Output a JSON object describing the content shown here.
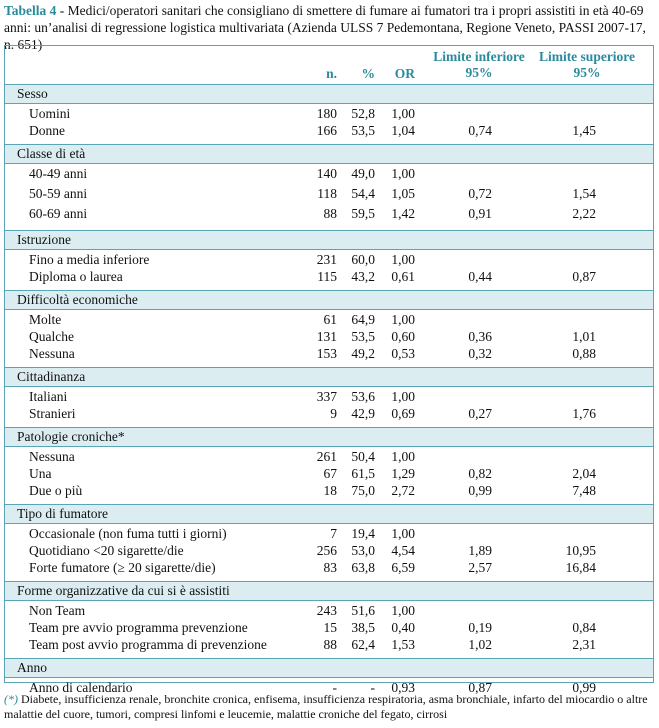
{
  "title": {
    "label": "Tabella 4",
    "text": "- Medici/operatori sanitari che consigliano di smettere di fumare ai fumatori tra i propri assistiti in età 40-69 anni: un’analisi di regressione logistica multivariata (Azienda ULSS 7 Pedemontana, Regione Veneto, PASSI 2007-17, n. 651)"
  },
  "table": {
    "headers": {
      "n": "n.",
      "pct": "%",
      "or": "OR",
      "lo": {
        "line1": "Limite inferiore",
        "line2": "95%"
      },
      "hi": {
        "line1": "Limite superiore",
        "line2": "95%"
      }
    },
    "groups": [
      {
        "name": "Sesso",
        "rows": [
          {
            "label": "Uomini",
            "n": "180",
            "pct": "52,8",
            "or": "1,00"
          },
          {
            "label": "Donne",
            "n": "166",
            "pct": "53,5",
            "or": "1,04",
            "lo": "0,74",
            "hi": "1,45"
          }
        ]
      },
      {
        "name": "Classe di età",
        "rows": [
          {
            "label": "40-49 anni",
            "n": "140",
            "pct": "49,0",
            "or": "1,00"
          },
          {
            "label": "50-59 anni",
            "n": "118",
            "pct": "54,4",
            "or": "1,05",
            "lo": "0,72",
            "hi": "1,54"
          },
          {
            "label": "60-69 anni",
            "n": "88",
            "pct": "59,5",
            "or": "1,42",
            "lo": "0,91",
            "hi": "2,22"
          }
        ]
      },
      {
        "name": "Istruzione",
        "rows": [
          {
            "label": "Fino a media inferiore",
            "n": "231",
            "pct": "60,0",
            "or": "1,00"
          },
          {
            "label": "Diploma o laurea",
            "n": "115",
            "pct": "43,2",
            "or": "0,61",
            "lo": "0,44",
            "hi": "0,87"
          }
        ]
      },
      {
        "name": "Difficoltà economiche",
        "rows": [
          {
            "label": "Molte",
            "n": "61",
            "pct": "64,9",
            "or": "1,00"
          },
          {
            "label": "Qualche",
            "n": "131",
            "pct": "53,5",
            "or": "0,60",
            "lo": "0,36",
            "hi": "1,01"
          },
          {
            "label": "Nessuna",
            "n": "153",
            "pct": "49,2",
            "or": "0,53",
            "lo": "0,32",
            "hi": "0,88"
          }
        ]
      },
      {
        "name": "Cittadinanza",
        "rows": [
          {
            "label": "Italiani",
            "n": "337",
            "pct": "53,6",
            "or": "1,00"
          },
          {
            "label": "Stranieri",
            "n": "9",
            "pct": "42,9",
            "or": "0,69",
            "lo": "0,27",
            "hi": "1,76"
          }
        ]
      },
      {
        "name": "Patologie croniche*",
        "rows": [
          {
            "label": "Nessuna",
            "n": "261",
            "pct": "50,4",
            "or": "1,00"
          },
          {
            "label": "Una",
            "n": "67",
            "pct": "61,5",
            "or": "1,29",
            "lo": "0,82",
            "hi": "2,04"
          },
          {
            "label": "Due o più",
            "n": "18",
            "pct": "75,0",
            "or": "2,72",
            "lo": "0,99",
            "hi": "7,48"
          }
        ]
      },
      {
        "name": "Tipo di fumatore",
        "rows": [
          {
            "label": "Occasionale (non fuma tutti i giorni)",
            "n": "7",
            "pct": "19,4",
            "or": "1,00"
          },
          {
            "label": "Quotidiano <20 sigarette/die",
            "n": "256",
            "pct": "53,0",
            "or": "4,54",
            "lo": "1,89",
            "hi": "10,95"
          },
          {
            "label": "Forte fumatore (≥ 20 sigarette/die)",
            "n": "83",
            "pct": "63,8",
            "or": "6,59",
            "lo": "2,57",
            "hi": "16,84"
          }
        ]
      },
      {
        "name": "Forme organizzative da cui si è assistiti",
        "rows": [
          {
            "label": "Non Team",
            "n": "243",
            "pct": "51,6",
            "or": "1,00"
          },
          {
            "label": "Team pre avvio programma prevenzione",
            "n": "15",
            "pct": "38,5",
            "or": "0,40",
            "lo": "0,19",
            "hi": "0,84"
          },
          {
            "label": "Team post avvio programma di prevenzione",
            "n": "88",
            "pct": "62,4",
            "or": "1,53",
            "lo": "1,02",
            "hi": "2,31"
          }
        ]
      },
      {
        "name": "Anno",
        "rows": [
          {
            "label": "Anno di calendario",
            "n": "-",
            "pct": "-",
            "or": "0,93",
            "lo": "0,87",
            "hi": "0,99"
          }
        ]
      }
    ]
  },
  "footnote": {
    "marker": "(*)",
    "text": "Diabete, insufficienza renale, bronchite cronica, enfisema, insufficienza respiratoria, asma bronchiale, infarto del miocardio o altre malattie del cuore, tumori, compresi linfomi e leucemie, malattie croniche del fegato, cirrosi"
  }
}
